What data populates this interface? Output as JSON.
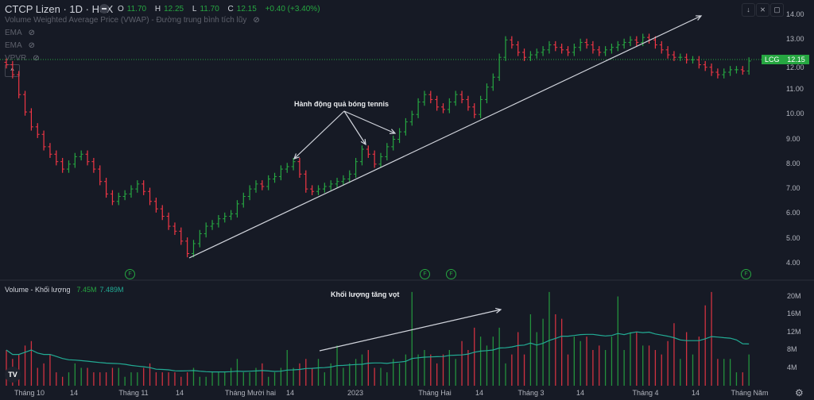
{
  "header": {
    "symbol_title": "CTCP Lizen · 1D · HSX",
    "ohlc": {
      "o_label": "O",
      "o": "11.70",
      "h_label": "H",
      "h": "12.25",
      "l_label": "L",
      "l": "11.70",
      "c_label": "C",
      "c": "12.15",
      "change": "+0.40 (+3.40%)"
    },
    "indicators": [
      "Volume Weighted Average Price (VWAP) - Đường trung bình tích lũy",
      "EMA",
      "EMA",
      "VPVR"
    ],
    "toolbar_icons": [
      "arrow-down-icon",
      "collapse-icon",
      "maximize-icon"
    ]
  },
  "price_axis": {
    "ticks": [
      "14.00",
      "13.00",
      "12.00",
      "11.00",
      "10.00",
      "9.00",
      "8.00",
      "7.00",
      "6.00",
      "5.00",
      "4.00"
    ]
  },
  "last_price": {
    "ticker": "LCG",
    "value": "12.15"
  },
  "annotations": {
    "tennis": "Hành động quả bóng tennis",
    "volume_spike": "Khối lượng tăng vọt"
  },
  "f_marker": "F",
  "volume_pane": {
    "title": "Volume - Khối lượng",
    "value": "7.45M",
    "ma_value": "7.489M",
    "ticks": [
      "20M",
      "16M",
      "12M",
      "8M",
      "4M"
    ]
  },
  "time_axis": [
    "Tháng 10",
    "14",
    "Tháng 11",
    "14",
    "Tháng Mười hai",
    "14",
    "2023",
    "Tháng Hai",
    "14",
    "Tháng 3",
    "14",
    "Tháng 4",
    "14",
    "Tháng Năm"
  ],
  "logo": "TV",
  "colors": {
    "up": "#26a641",
    "down": "#f23645",
    "ma": "#22ab94",
    "bg": "#161a25"
  },
  "chart_data": {
    "type": "ohlc",
    "ylim": [
      3.5,
      14.5
    ],
    "closes": [
      12.0,
      11.6,
      10.8,
      10.1,
      9.5,
      9.2,
      8.7,
      8.4,
      8.1,
      7.8,
      8.0,
      8.3,
      8.4,
      8.1,
      7.8,
      7.3,
      6.8,
      6.5,
      6.7,
      6.8,
      7.0,
      7.2,
      6.9,
      6.5,
      6.2,
      5.9,
      5.5,
      5.3,
      4.9,
      4.4,
      4.8,
      5.2,
      5.5,
      5.6,
      5.8,
      5.9,
      6.0,
      6.4,
      6.7,
      7.0,
      7.2,
      7.1,
      7.4,
      7.5,
      7.8,
      7.9,
      8.1,
      7.6,
      7.0,
      6.9,
      7.0,
      7.1,
      7.2,
      7.3,
      7.4,
      7.6,
      8.1,
      8.6,
      8.4,
      8.0,
      8.3,
      8.7,
      9.0,
      9.3,
      9.7,
      10.0,
      10.5,
      10.8,
      10.6,
      10.3,
      10.2,
      10.5,
      10.8,
      10.6,
      10.3,
      10.0,
      10.6,
      11.1,
      11.5,
      12.3,
      13.0,
      12.8,
      12.5,
      12.3,
      12.4,
      12.5,
      12.6,
      12.8,
      12.7,
      12.6,
      12.5,
      12.7,
      12.9,
      12.8,
      12.6,
      12.5,
      12.6,
      12.7,
      12.8,
      12.9,
      13.0,
      12.9,
      13.1,
      13.0,
      12.8,
      12.6,
      12.4,
      12.3,
      12.3,
      12.2,
      12.2,
      12.0,
      11.9,
      11.7,
      11.6,
      11.7,
      11.8,
      11.8,
      11.75,
      12.15
    ],
    "volumes_m": [
      8,
      6,
      7,
      9,
      10,
      4,
      5,
      7,
      3,
      2,
      3,
      5,
      4,
      4,
      3,
      3,
      3,
      4,
      4,
      2,
      3,
      3,
      4,
      5,
      3,
      3,
      3,
      3,
      2,
      3,
      4,
      2,
      2,
      3,
      3,
      3,
      4,
      6,
      3,
      3,
      4,
      5,
      2,
      3,
      4,
      8,
      4,
      5,
      6,
      4,
      6,
      3,
      5,
      9,
      4,
      5,
      6,
      7,
      8,
      4,
      4,
      3,
      6,
      5,
      7,
      21,
      7,
      8,
      7,
      5,
      7,
      8,
      6,
      10,
      8,
      13,
      11,
      9,
      11,
      13,
      5,
      7,
      12,
      7,
      16,
      12,
      15,
      21,
      16,
      15,
      7,
      11,
      10,
      11,
      8,
      9,
      8,
      11,
      20,
      8,
      12,
      12,
      9,
      9,
      8,
      7,
      10,
      14,
      6,
      12,
      7,
      11,
      18,
      21,
      6,
      6,
      6,
      3,
      3,
      7
    ],
    "volume_ylim": [
      0,
      22
    ]
  }
}
